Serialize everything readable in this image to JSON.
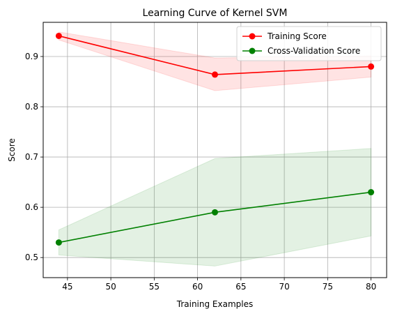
{
  "chart_data": {
    "type": "line",
    "title": "Learning Curve of Kernel SVM",
    "xlabel": "Training Examples",
    "ylabel": "Score",
    "xlim": [
      42.2,
      81.8
    ],
    "ylim": [
      0.46,
      0.968
    ],
    "xticks": [
      45,
      50,
      55,
      60,
      65,
      70,
      75,
      80
    ],
    "yticks": [
      0.5,
      0.6,
      0.7,
      0.8,
      0.9
    ],
    "grid": true,
    "legend_position": "top-right",
    "x": [
      44,
      62,
      80
    ],
    "series": [
      {
        "name": "Training Score",
        "color": "#ff0000",
        "values": [
          0.941,
          0.864,
          0.88
        ],
        "band_lower": [
          0.933,
          0.832,
          0.859
        ],
        "band_upper": [
          0.949,
          0.897,
          0.901
        ]
      },
      {
        "name": "Cross-Validation Score",
        "color": "#008000",
        "values": [
          0.53,
          0.59,
          0.63
        ],
        "band_lower": [
          0.505,
          0.483,
          0.543
        ],
        "band_upper": [
          0.555,
          0.697,
          0.717
        ]
      }
    ]
  }
}
